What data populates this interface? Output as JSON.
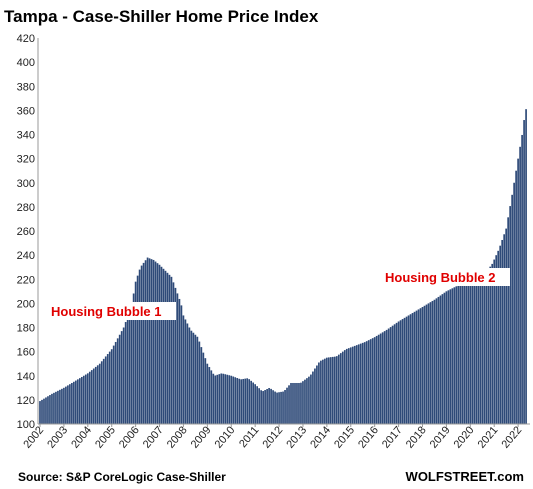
{
  "chart_data": {
    "type": "bar",
    "title": "Tampa - Case-Shiller Home Price Index",
    "xlabel": "",
    "ylabel": "",
    "ylim": [
      100,
      420
    ],
    "yticks": [
      100,
      120,
      140,
      160,
      180,
      200,
      220,
      240,
      260,
      280,
      300,
      320,
      340,
      360,
      380,
      400,
      420
    ],
    "x_start": 2002,
    "x_end": 2022.33,
    "xtick_labels": [
      "2002",
      "2003",
      "2004",
      "2005",
      "2006",
      "2007",
      "2008",
      "2009",
      "2010",
      "2011",
      "2012",
      "2013",
      "2014",
      "2015",
      "2016",
      "2017",
      "2018",
      "2019",
      "2020",
      "2021",
      "2022"
    ],
    "frequency": "monthly",
    "series": [
      {
        "color": "#2e4a78",
        "anchors": [
          [
            2002.0,
            119
          ],
          [
            2002.5,
            125
          ],
          [
            2003.0,
            130
          ],
          [
            2003.5,
            136
          ],
          [
            2004.0,
            142
          ],
          [
            2004.5,
            150
          ],
          [
            2005.0,
            162
          ],
          [
            2005.5,
            180
          ],
          [
            2005.83,
            198
          ],
          [
            2006.0,
            218
          ],
          [
            2006.2,
            230
          ],
          [
            2006.5,
            238
          ],
          [
            2006.75,
            236
          ],
          [
            2007.0,
            232
          ],
          [
            2007.5,
            222
          ],
          [
            2007.9,
            200
          ],
          [
            2008.0,
            190
          ],
          [
            2008.3,
            178
          ],
          [
            2008.6,
            172
          ],
          [
            2009.0,
            150
          ],
          [
            2009.3,
            140
          ],
          [
            2009.6,
            142
          ],
          [
            2010.0,
            140
          ],
          [
            2010.4,
            137
          ],
          [
            2010.7,
            138
          ],
          [
            2011.0,
            133
          ],
          [
            2011.3,
            127
          ],
          [
            2011.6,
            130
          ],
          [
            2011.9,
            126
          ],
          [
            2012.2,
            127
          ],
          [
            2012.5,
            134
          ],
          [
            2012.9,
            134
          ],
          [
            2013.3,
            140
          ],
          [
            2013.7,
            152
          ],
          [
            2014.0,
            155
          ],
          [
            2014.4,
            156
          ],
          [
            2014.8,
            162
          ],
          [
            2015.2,
            165
          ],
          [
            2015.6,
            168
          ],
          [
            2016.0,
            172
          ],
          [
            2016.5,
            178
          ],
          [
            2017.0,
            185
          ],
          [
            2017.5,
            191
          ],
          [
            2018.0,
            197
          ],
          [
            2018.5,
            203
          ],
          [
            2019.0,
            210
          ],
          [
            2019.5,
            215
          ],
          [
            2019.9,
            218
          ],
          [
            2020.2,
            220
          ],
          [
            2020.6,
            225
          ],
          [
            2020.9,
            232
          ],
          [
            2021.2,
            245
          ],
          [
            2021.5,
            262
          ],
          [
            2021.75,
            290
          ],
          [
            2022.0,
            320
          ],
          [
            2022.17,
            340
          ],
          [
            2022.25,
            352
          ],
          [
            2022.33,
            361
          ]
        ]
      }
    ],
    "annotations": [
      {
        "text": "Housing Bubble 1"
      },
      {
        "text": "Housing Bubble 2"
      }
    ],
    "source": "Source: S&P CoreLogic Case-Shiller",
    "brand": "WOLFSTREET.com",
    "grid": false,
    "legend": "none"
  }
}
